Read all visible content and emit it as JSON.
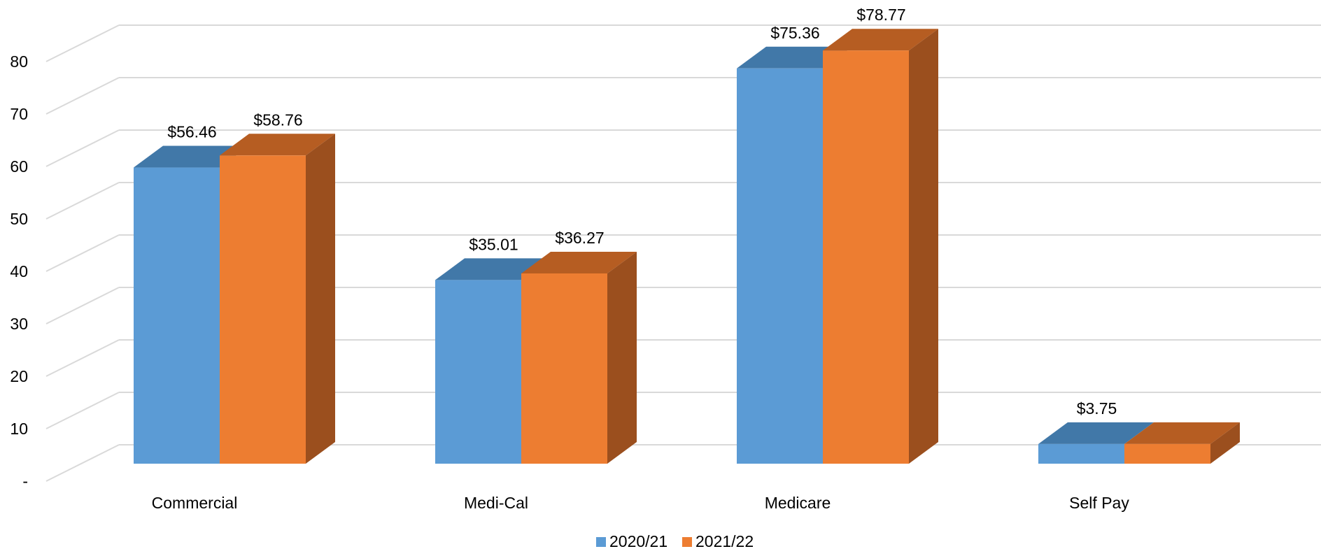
{
  "chart_data": {
    "type": "bar",
    "style": "3d-clustered-column",
    "title": "",
    "xlabel": "",
    "ylabel": "",
    "categories": [
      "Commercial",
      "Medi-Cal",
      "Medicare",
      "Self Pay"
    ],
    "series": [
      {
        "name": "2020/21",
        "values": [
          56.46,
          35.01,
          75.36,
          3.75
        ],
        "labels": [
          "$56.46",
          "$35.01",
          "$75.36",
          "$3.75"
        ]
      },
      {
        "name": "2021/22",
        "values": [
          58.76,
          36.27,
          78.77,
          3.75
        ],
        "labels": [
          "$58.76",
          "$36.27",
          "$78.77",
          ""
        ]
      }
    ],
    "ylim": [
      0,
      80
    ],
    "yticks": [
      0,
      10,
      20,
      30,
      40,
      50,
      60,
      70,
      80
    ],
    "ytick_labels": [
      "-",
      "10",
      "20",
      "30",
      "40",
      "50",
      "60",
      "70",
      "80"
    ],
    "grid": true,
    "legend_position": "bottom-center",
    "colors": {
      "2020/21": "#5B9BD5",
      "2020/21_top": "#4178A8",
      "2021/22": "#ED7D31",
      "2021/22_top": "#B65D22",
      "2021/22_side": "#9B4F1E",
      "grid": "#D9D9D9"
    }
  }
}
